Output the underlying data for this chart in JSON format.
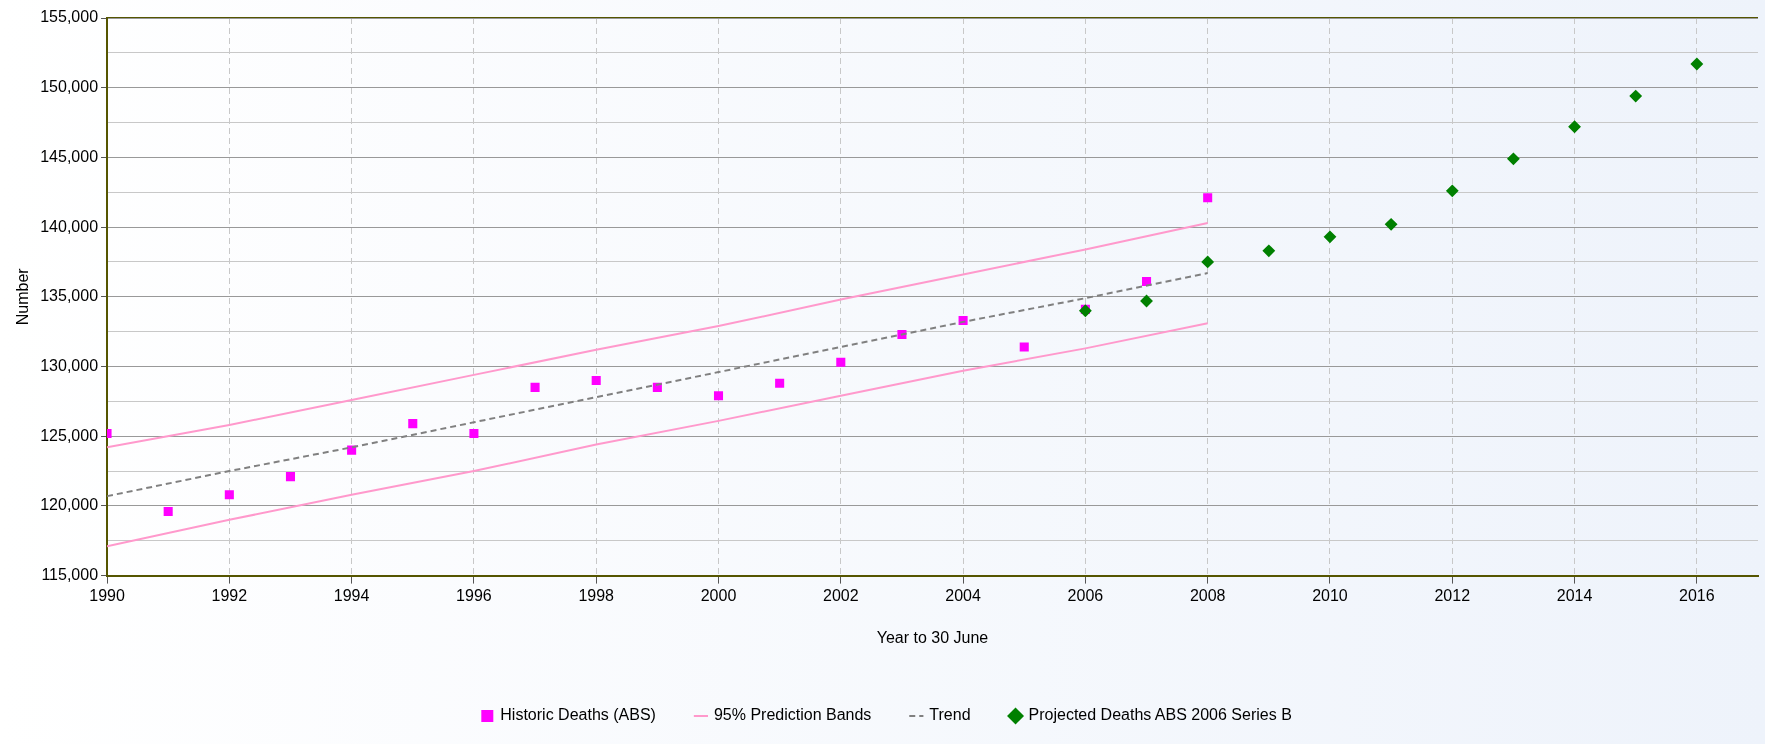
{
  "chart_data": {
    "type": "scatter",
    "xlabel": "Year to 30 June",
    "ylabel": "Number",
    "xlim": [
      1990,
      2017
    ],
    "xticks": [
      1990,
      1992,
      1994,
      1996,
      1998,
      2000,
      2002,
      2004,
      2006,
      2008,
      2010,
      2012,
      2014,
      2016
    ],
    "ylim": [
      115000,
      155000
    ],
    "yticks": [
      {
        "value": 115000,
        "label": "115,000"
      },
      {
        "value": 117500,
        "label": null
      },
      {
        "value": 120000,
        "label": "120,000"
      },
      {
        "value": 122500,
        "label": null
      },
      {
        "value": 125000,
        "label": "125,000"
      },
      {
        "value": 127500,
        "label": null
      },
      {
        "value": 130000,
        "label": "130,000"
      },
      {
        "value": 132500,
        "label": null
      },
      {
        "value": 135000,
        "label": "135,000"
      },
      {
        "value": 137500,
        "label": null
      },
      {
        "value": 140000,
        "label": "140,000"
      },
      {
        "value": 142500,
        "label": null
      },
      {
        "value": 145000,
        "label": "145,000"
      },
      {
        "value": 147500,
        "label": null
      },
      {
        "value": 150000,
        "label": "150,000"
      },
      {
        "value": 152500,
        "label": null
      },
      {
        "value": 155000,
        "label": "155,000"
      }
    ],
    "grid": true,
    "legend": "bottom",
    "series": [
      {
        "name": "Historic Deaths (ABS)",
        "marker": "square",
        "color": "#ff00ff",
        "x": [
          1990,
          1991,
          1992,
          1993,
          1994,
          1995,
          1996,
          1997,
          1998,
          1999,
          2000,
          2001,
          2002,
          2003,
          2004,
          2005,
          2006,
          2007,
          2008
        ],
        "values": [
          125200,
          119600,
          120800,
          122100,
          124000,
          125900,
          125200,
          128500,
          129000,
          128500,
          127900,
          128800,
          130300,
          132300,
          133300,
          131400,
          134100,
          136100,
          142100
        ]
      },
      {
        "name": "95% Prediction Bands",
        "type": "line",
        "marker": "none",
        "line_style": "solid",
        "color": "#ff99cc",
        "x": [
          1990,
          1992,
          1994,
          1996,
          1998,
          2000,
          2002,
          2004,
          2006,
          2008
        ],
        "values": [
          124200,
          125800,
          127600,
          129400,
          131200,
          132900,
          134800,
          136600,
          138400,
          140300
        ]
      },
      {
        "type": "line",
        "marker": "none",
        "line_style": "solid",
        "color": "#ff99cc",
        "x": [
          1990,
          1992,
          1994,
          1996,
          1998,
          2000,
          2002,
          2004,
          2006,
          2008
        ],
        "values": [
          117100,
          119000,
          120800,
          122500,
          124400,
          126100,
          127900,
          129700,
          131300,
          133100
        ]
      },
      {
        "name": "Trend",
        "type": "line",
        "marker": "none",
        "line_style": "dashed",
        "color": "#808080",
        "x": [
          1990,
          1992,
          1994,
          1996,
          1998,
          2000,
          2002,
          2004,
          2006,
          2008
        ],
        "values": [
          120700,
          122500,
          124200,
          126000,
          127800,
          129600,
          131400,
          133200,
          134900,
          136700
        ]
      },
      {
        "name": "Projected Deaths ABS 2006 Series B",
        "marker": "diamond",
        "color": "#008000",
        "x": [
          2006,
          2007,
          2008,
          2009,
          2010,
          2011,
          2012,
          2013,
          2014,
          2015,
          2016
        ],
        "values": [
          134000,
          134700,
          137500,
          138300,
          139300,
          140200,
          142600,
          144900,
          147200,
          149400,
          151700
        ]
      }
    ]
  }
}
